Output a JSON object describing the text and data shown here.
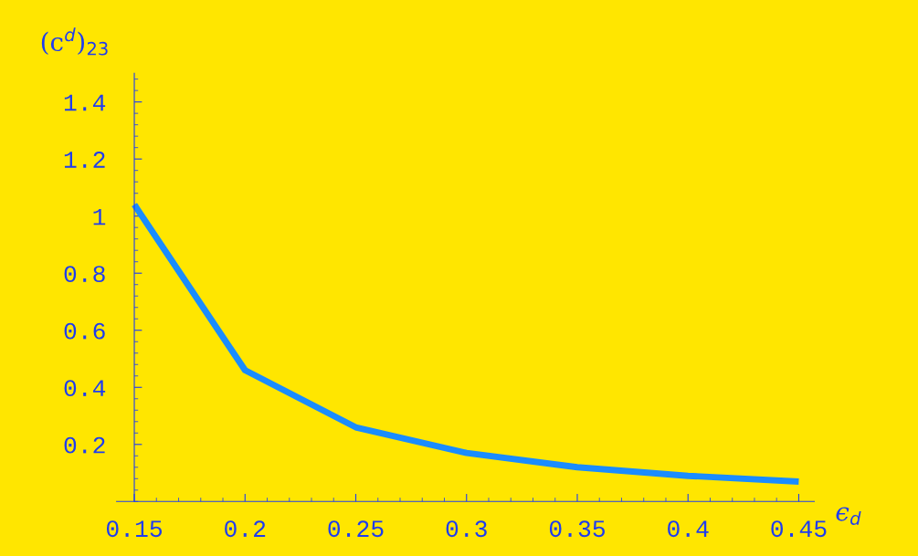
{
  "chart_data": {
    "type": "line",
    "xlabel": "ϵ$_{d}$",
    "ylabel": "(c$^{d}$)$_{23}$",
    "x": [
      0.15,
      0.2,
      0.25,
      0.3,
      0.35,
      0.4,
      0.45
    ],
    "series": [
      {
        "color": "#1a8cff",
        "values": [
          1.04,
          0.46,
          0.26,
          0.17,
          0.12,
          0.09,
          0.07
        ]
      }
    ],
    "xlim": [
      0.142,
      0.457
    ],
    "ylim": [
      0,
      1.5
    ],
    "xticks": [
      0.15,
      0.2,
      0.25,
      0.3,
      0.35,
      0.4,
      0.45
    ],
    "yticks": [
      0.2,
      0.4,
      0.6,
      0.8,
      1,
      1.2,
      1.4
    ],
    "grid": false,
    "legend": false,
    "marker": "none",
    "line_style": "solid"
  }
}
